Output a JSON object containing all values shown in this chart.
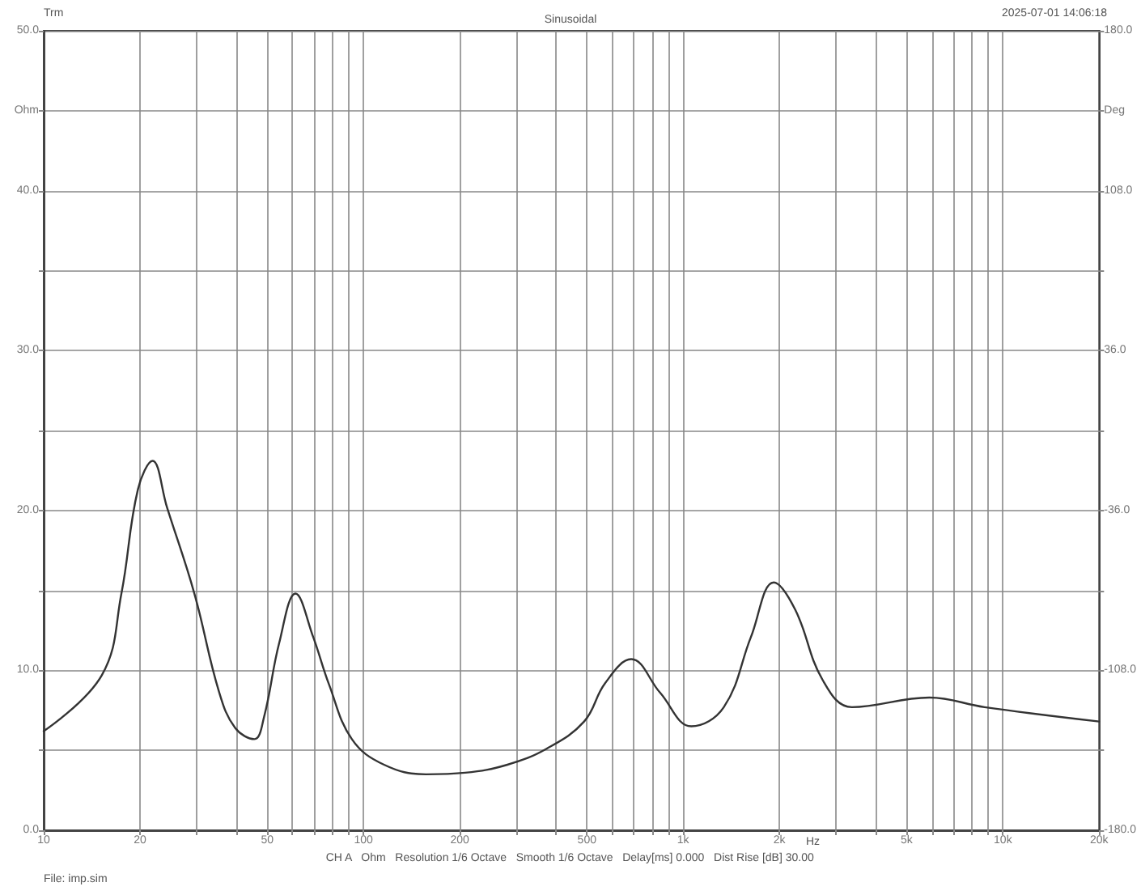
{
  "chart_data": {
    "type": "line",
    "title": "Sinusoidal",
    "annotations": [
      "Trm",
      "2025-07-01 14:06:18",
      "CH A   Ohm   Resolution 1/6 Octave   Smooth 1/6 Octave   Delay[ms] 0.000   Dist Rise [dB] 30.00",
      "File: imp.sim"
    ],
    "xlabel": "Hz",
    "log": "x",
    "series": [
      {
        "color": "#333333",
        "x": [
          10,
          15.2,
          17.5,
          19.7,
          21.9,
          24.3,
          29.6,
          35.3,
          39.7,
          45.6,
          48.9,
          54.5,
          61.3,
          69.6,
          78.1,
          92,
          116,
          157,
          208,
          282,
          374,
          490,
          570,
          688,
          847,
          1060,
          1340,
          1630,
          1920,
          2240,
          2730,
          3370,
          5890,
          8760,
          20000
        ],
        "values": [
          6.2,
          9.7,
          14.8,
          21.3,
          23.1,
          20.2,
          14.8,
          8.7,
          6.4,
          5.7,
          7.1,
          11.7,
          14.8,
          12.1,
          9.1,
          5.7,
          4.1,
          3.5,
          3.6,
          4.1,
          5.1,
          6.8,
          9.2,
          10.7,
          8.6,
          6.5,
          7.7,
          12.1,
          15.5,
          13.8,
          9.4,
          7.7,
          8.3,
          7.7,
          6.8
        ]
      }
    ],
    "xlim": [
      10,
      20000
    ],
    "xticks": [
      10,
      {
        "value": 20,
        "label": "20"
      },
      {
        "value": 30,
        "label": null
      },
      {
        "value": 40,
        "label": null
      },
      50,
      {
        "value": 60,
        "label": null
      },
      {
        "value": 70,
        "label": null
      },
      {
        "value": 80,
        "label": null
      },
      {
        "value": 90,
        "label": null
      },
      100,
      200,
      {
        "value": 300,
        "label": null
      },
      {
        "value": 400,
        "label": null
      },
      500,
      {
        "value": 600,
        "label": null
      },
      {
        "value": 700,
        "label": null
      },
      {
        "value": 800,
        "label": null
      },
      {
        "value": 900,
        "label": null
      },
      {
        "value": 1000,
        "label": "1k"
      },
      {
        "value": 2000,
        "label": "2k"
      },
      {
        "value": 3000,
        "label": null
      },
      {
        "value": 4000,
        "label": null
      },
      {
        "value": 5000,
        "label": "5k"
      },
      {
        "value": 6000,
        "label": null
      },
      {
        "value": 7000,
        "label": null
      },
      {
        "value": 8000,
        "label": null
      },
      {
        "value": 9000,
        "label": null
      },
      {
        "value": 10000,
        "label": "10k"
      },
      {
        "value": 20000,
        "label": "20k"
      }
    ],
    "ylim": [
      0,
      50
    ],
    "yticks": [
      {
        "value": 0,
        "label": "0.0"
      },
      {
        "value": 5,
        "label": null
      },
      {
        "value": 10,
        "label": "10.0"
      },
      {
        "value": 15,
        "label": null
      },
      {
        "value": 20,
        "label": "20.0"
      },
      {
        "value": 25,
        "label": null
      },
      {
        "value": 30,
        "label": "30.0"
      },
      {
        "value": 35,
        "label": null
      },
      {
        "value": 40,
        "label": "40.0"
      },
      {
        "value": 45,
        "label": "Ohm"
      },
      {
        "value": 50,
        "label": "50.0"
      }
    ],
    "y2lim": [
      -180,
      180
    ],
    "y2ticks": [
      {
        "value": -180,
        "label": "-180.0"
      },
      {
        "value": -144,
        "label": null
      },
      {
        "value": -108,
        "label": "-108.0"
      },
      {
        "value": -72,
        "label": null
      },
      {
        "value": -36,
        "label": "-36.0"
      },
      {
        "value": 0,
        "label": null
      },
      {
        "value": 36,
        "label": "36.0"
      },
      {
        "value": 72,
        "label": null
      },
      {
        "value": 108,
        "label": "108.0"
      },
      {
        "value": 144,
        "label": "Deg"
      },
      {
        "value": 180,
        "label": "180.0"
      }
    ],
    "grid": true,
    "marker": "none",
    "line_style": "solid"
  }
}
